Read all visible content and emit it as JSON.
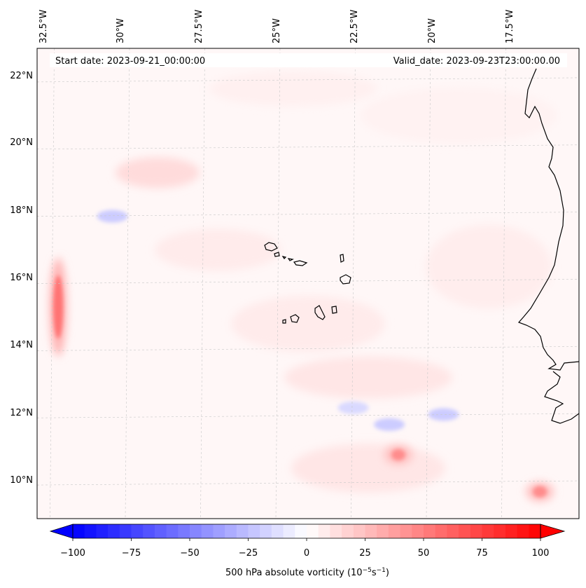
{
  "chart_data": {
    "type": "map",
    "title": "",
    "annotations": {
      "start_date": "Start date: 2023-09-21_00:00:00",
      "valid_date": "Valid_date: 2023-09-23T23:00:00.00"
    },
    "variable": "500 hPa absolute vorticity",
    "units": "10^-5 s^-1",
    "longitude_ticks": [
      "32.5°W",
      "30°W",
      "27.5°W",
      "25°W",
      "22.5°W",
      "20°W",
      "17.5°W"
    ],
    "latitude_ticks": [
      "22°N",
      "20°N",
      "18°N",
      "16°N",
      "14°N",
      "12°N",
      "10°N"
    ],
    "extent": {
      "lon_min": -33.0,
      "lon_max": -15.0,
      "lat_min": 9.0,
      "lat_max": 23.0
    },
    "colormap": "bwr",
    "colorbar": {
      "min": -100,
      "max": 100,
      "ticks": [
        "−100",
        "−75",
        "−50",
        "−25",
        "0",
        "25",
        "50",
        "75",
        "100"
      ],
      "tick_values": [
        -100,
        -75,
        -50,
        -25,
        0,
        25,
        50,
        75,
        100
      ],
      "levels": 40,
      "extend": "both",
      "label_prefix": "500 hPa absolute vorticity (10",
      "label_exp1": "−5",
      "label_mid": "s",
      "label_exp2": "−1",
      "label_suffix": ")"
    },
    "features": {
      "strong_positive_vorticity": [
        {
          "lon": -32.3,
          "lat": 15.3,
          "value": 55
        },
        {
          "lon": -21.0,
          "lat": 10.9,
          "value": 45
        },
        {
          "lon": -16.3,
          "lat": 9.8,
          "value": 45
        }
      ],
      "negative_vorticity": [
        {
          "lon": -30.5,
          "lat": 18.0,
          "value": -20
        },
        {
          "lon": -21.3,
          "lat": 11.8,
          "value": -20
        },
        {
          "lon": -19.5,
          "lat": 12.1,
          "value": -20
        },
        {
          "lon": -22.5,
          "lat": 12.3,
          "value": -15
        }
      ]
    },
    "coastline": "West Africa (Mauritania, Senegal, Guinea-Bissau) and Cape Verde islands",
    "colors": {
      "positive": "#ff0000",
      "negative": "#0000ff",
      "coastline": "#000000",
      "gridlines": "#c8c8c8"
    }
  }
}
